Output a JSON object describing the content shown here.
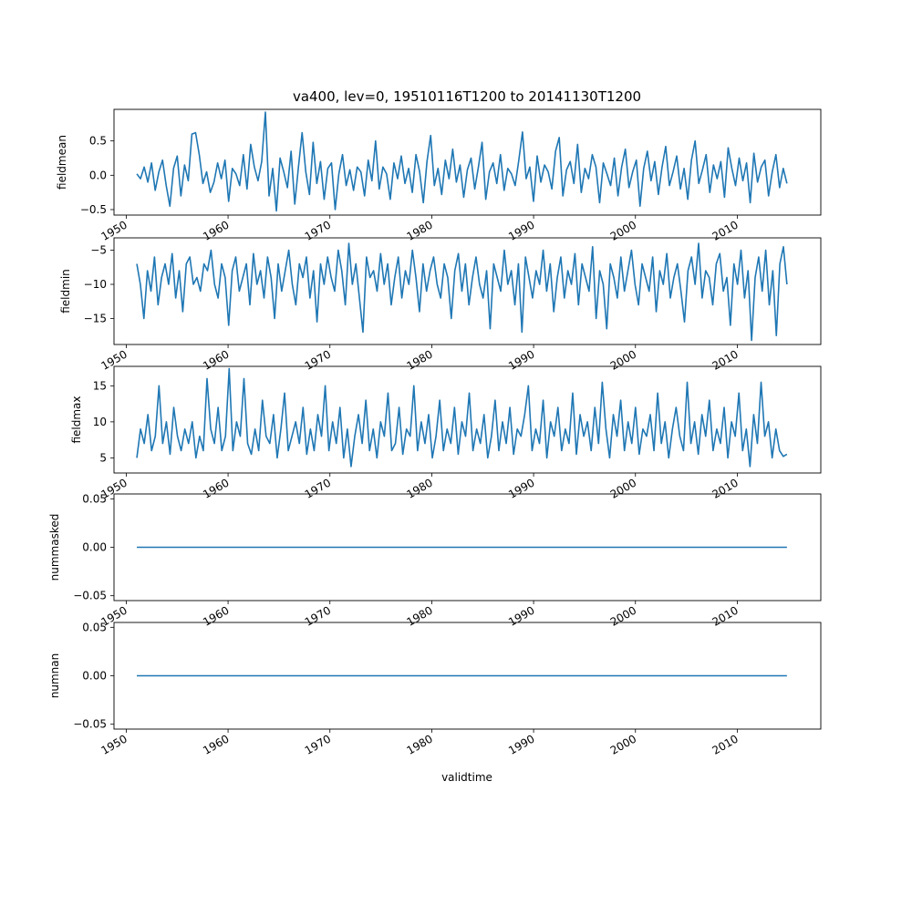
{
  "figure_title": "va400, lev=0, 19510116T1200 to 20141130T1200",
  "x_axis_label": "validtime",
  "colors": {
    "line": "#1f77b4",
    "axes": "#000000",
    "background": "#ffffff"
  },
  "chart_data": [
    {
      "type": "line",
      "ylabel": "fieldmean",
      "xlim": [
        1948.8,
        2018.2
      ],
      "ylim": [
        -0.58,
        0.96
      ],
      "yticks": [
        -0.5,
        0.0,
        0.5
      ],
      "ytick_labels": [
        "−0.5",
        "0.0",
        "0.5"
      ],
      "xticks": [
        1950,
        1960,
        1970,
        1980,
        1990,
        2000,
        2010
      ],
      "xtick_labels": [
        "1950",
        "1960",
        "1970",
        "1980",
        "1990",
        "2000",
        "2010"
      ],
      "x_start": "1951-01",
      "x_end": "2014-11",
      "values": [
        0.02,
        -0.05,
        0.12,
        -0.1,
        0.18,
        -0.22,
        0.05,
        0.22,
        -0.15,
        -0.45,
        0.1,
        0.28,
        -0.3,
        0.15,
        -0.08,
        0.6,
        0.62,
        0.3,
        -0.12,
        0.05,
        -0.25,
        -0.1,
        0.18,
        -0.05,
        0.22,
        -0.38,
        0.1,
        0.02,
        -0.15,
        0.3,
        -0.2,
        0.45,
        0.12,
        -0.08,
        0.2,
        0.92,
        -0.3,
        0.1,
        -0.52,
        0.25,
        0.05,
        -0.18,
        0.35,
        -0.42,
        0.12,
        0.62,
        0.05,
        -0.28,
        0.48,
        -0.12,
        0.2,
        -0.35,
        0.1,
        0.18,
        -0.5,
        0.02,
        0.3,
        -0.15,
        0.08,
        -0.22,
        0.12,
        0.05,
        -0.3,
        0.22,
        -0.08,
        0.5,
        -0.2,
        0.12,
        0.02,
        -0.35,
        0.18,
        -0.05,
        0.28,
        -0.12,
        0.1,
        -0.25,
        0.3,
        0.05,
        -0.4,
        0.2,
        0.58,
        -0.15,
        0.1,
        -0.28,
        0.22,
        -0.05,
        0.38,
        -0.1,
        0.15,
        -0.32,
        0.08,
        0.25,
        -0.2,
        0.12,
        0.48,
        -0.35,
        0.05,
        0.18,
        -0.12,
        0.3,
        -0.22,
        0.1,
        0.02,
        -0.15,
        0.22,
        0.63,
        -0.05,
        0.12,
        -0.38,
        0.28,
        -0.1,
        0.15,
        0.05,
        -0.2,
        0.35,
        0.55,
        -0.3,
        0.08,
        0.2,
        -0.12,
        0.45,
        -0.25,
        0.1,
        -0.05,
        0.3,
        0.12,
        -0.4,
        0.18,
        0.02,
        -0.15,
        0.25,
        -0.3,
        0.12,
        0.38,
        -0.18,
        0.05,
        0.22,
        -0.45,
        0.1,
        0.35,
        -0.08,
        0.2,
        -0.28,
        0.12,
        0.42,
        -0.15,
        0.05,
        0.28,
        -0.2,
        0.1,
        -0.35,
        0.22,
        0.5,
        -0.12,
        0.08,
        0.3,
        -0.25,
        0.15,
        -0.05,
        0.2,
        -0.32,
        0.4,
        0.1,
        -0.15,
        0.25,
        -0.08,
        0.18,
        -0.4,
        0.32,
        -0.1,
        0.12,
        0.22,
        -0.3,
        0.05,
        0.3,
        -0.18,
        0.1,
        -0.12
      ],
      "line_color": "#1f77b4"
    },
    {
      "type": "line",
      "ylabel": "fieldmin",
      "xlim": [
        1948.8,
        2018.2
      ],
      "ylim": [
        -18.8,
        -3.2
      ],
      "yticks": [
        -15,
        -10,
        -5
      ],
      "ytick_labels": [
        "−15",
        "−10",
        "−5"
      ],
      "xticks": [
        1950,
        1960,
        1970,
        1980,
        1990,
        2000,
        2010
      ],
      "xtick_labels": [
        "1950",
        "1960",
        "1970",
        "1980",
        "1990",
        "2000",
        "2010"
      ],
      "x_start": "1951-01",
      "x_end": "2014-11",
      "values": [
        -7,
        -10,
        -15,
        -8,
        -11,
        -6,
        -13,
        -9,
        -7,
        -10,
        -5.5,
        -12,
        -8,
        -14,
        -7,
        -6,
        -10,
        -9,
        -11,
        -7,
        -8,
        -5,
        -10,
        -12,
        -7,
        -9,
        -16,
        -8,
        -6,
        -11,
        -9,
        -7,
        -13,
        -5.5,
        -10,
        -8,
        -12,
        -6,
        -9,
        -15,
        -7,
        -11,
        -8,
        -5,
        -10,
        -13,
        -7,
        -9,
        -6,
        -12,
        -8,
        -15.5,
        -7,
        -10,
        -6,
        -9,
        -11,
        -5,
        -8,
        -13,
        -4,
        -10,
        -7,
        -12,
        -17,
        -6,
        -9,
        -8,
        -11,
        -5.5,
        -10,
        -7,
        -13,
        -9,
        -6,
        -12,
        -8,
        -10,
        -5,
        -9,
        -14,
        -7,
        -11,
        -8,
        -6,
        -10,
        -12,
        -7,
        -9,
        -15,
        -8,
        -5.5,
        -11,
        -7,
        -13,
        -9,
        -6,
        -10,
        -12,
        -8,
        -16.5,
        -7,
        -9,
        -11,
        -5,
        -10,
        -8,
        -13,
        -7,
        -17,
        -6,
        -9,
        -12,
        -8,
        -10,
        -5,
        -11,
        -7,
        -14,
        -9,
        -6,
        -12,
        -8,
        -10,
        -5.5,
        -13,
        -7,
        -9,
        -11,
        -4.5,
        -15,
        -8,
        -10,
        -16.5,
        -7,
        -9,
        -12,
        -6,
        -11,
        -8,
        -5,
        -10,
        -13,
        -7,
        -9,
        -11,
        -6,
        -14,
        -8,
        -10,
        -5.5,
        -12,
        -9,
        -7,
        -11,
        -15.5,
        -8,
        -6,
        -10,
        -4,
        -12,
        -8,
        -9,
        -13,
        -7,
        -5.5,
        -11,
        -9,
        -16,
        -7,
        -10,
        -5,
        -12,
        -8,
        -18.2,
        -9,
        -6,
        -11,
        -5,
        -13,
        -8,
        -17.5,
        -7,
        -4.5,
        -10
      ],
      "line_color": "#1f77b4"
    },
    {
      "type": "line",
      "ylabel": "fieldmax",
      "xlim": [
        1948.8,
        2018.2
      ],
      "ylim": [
        2.9,
        17.7
      ],
      "yticks": [
        5,
        10,
        15
      ],
      "ytick_labels": [
        "5",
        "10",
        "15"
      ],
      "xticks": [
        1950,
        1960,
        1970,
        1980,
        1990,
        2000,
        2010
      ],
      "xtick_labels": [
        "1950",
        "1960",
        "1970",
        "1980",
        "1990",
        "2000",
        "2010"
      ],
      "x_start": "1951-01",
      "x_end": "2014-11",
      "values": [
        5,
        9,
        7,
        11,
        6,
        8,
        15,
        7,
        10,
        5.5,
        12,
        8,
        6,
        9,
        7,
        10,
        5,
        8,
        6,
        16,
        9,
        7,
        12,
        6,
        8,
        17.4,
        6,
        10,
        8,
        16,
        7,
        5.5,
        9,
        6,
        13,
        8,
        7,
        11,
        5,
        9,
        14,
        6,
        8,
        10,
        7,
        12,
        5.5,
        9,
        6,
        11,
        8,
        15,
        6,
        10,
        7,
        12,
        5,
        9,
        3.8,
        8,
        11,
        7,
        13,
        6,
        9,
        5,
        10,
        8,
        14,
        6,
        7,
        12,
        5.5,
        9,
        8,
        15,
        6,
        10,
        7,
        11,
        5,
        8,
        13,
        6,
        9,
        7,
        12,
        5.5,
        10,
        8,
        14,
        6,
        9,
        7,
        11,
        5,
        8,
        13,
        6,
        10,
        7,
        12,
        5.5,
        9,
        8,
        11,
        15,
        6,
        9,
        7,
        13,
        5,
        10,
        8,
        12,
        6,
        9,
        7,
        14,
        5.5,
        11,
        8,
        10,
        6,
        12,
        7,
        15.5,
        9,
        5,
        11,
        8,
        13,
        6,
        10,
        7,
        12,
        5.5,
        9,
        8,
        11,
        6,
        14,
        7,
        10,
        5,
        9,
        12,
        8,
        6,
        15.5,
        7,
        10,
        5.5,
        11,
        8,
        13,
        6,
        9,
        7,
        12,
        5,
        10,
        8,
        14,
        6,
        9,
        3.8,
        11,
        7,
        15.5,
        8,
        10,
        5,
        9,
        6,
        5.2,
        5.5
      ],
      "line_color": "#1f77b4"
    },
    {
      "type": "line",
      "ylabel": "nummasked",
      "xlim": [
        1948.8,
        2018.2
      ],
      "ylim": [
        -0.055,
        0.055
      ],
      "yticks": [
        -0.05,
        0.0,
        0.05
      ],
      "ytick_labels": [
        "−0.05",
        "0.00",
        "0.05"
      ],
      "xticks": [
        1950,
        1960,
        1970,
        1980,
        1990,
        2000,
        2010
      ],
      "xtick_labels": [
        "1950",
        "1960",
        "1970",
        "1980",
        "1990",
        "2000",
        "2010"
      ],
      "x_start": "1951-01",
      "x_end": "2014-11",
      "values": [
        0,
        0
      ],
      "line_color": "#1f77b4"
    },
    {
      "type": "line",
      "ylabel": "numnan",
      "xlim": [
        1948.8,
        2018.2
      ],
      "ylim": [
        -0.055,
        0.055
      ],
      "yticks": [
        -0.05,
        0.0,
        0.05
      ],
      "ytick_labels": [
        "−0.05",
        "0.00",
        "0.05"
      ],
      "xticks": [
        1950,
        1960,
        1970,
        1980,
        1990,
        2000,
        2010
      ],
      "xtick_labels": [
        "1950",
        "1960",
        "1970",
        "1980",
        "1990",
        "2000",
        "2010"
      ],
      "x_start": "1951-01",
      "x_end": "2014-11",
      "values": [
        0,
        0
      ],
      "line_color": "#1f77b4"
    }
  ]
}
